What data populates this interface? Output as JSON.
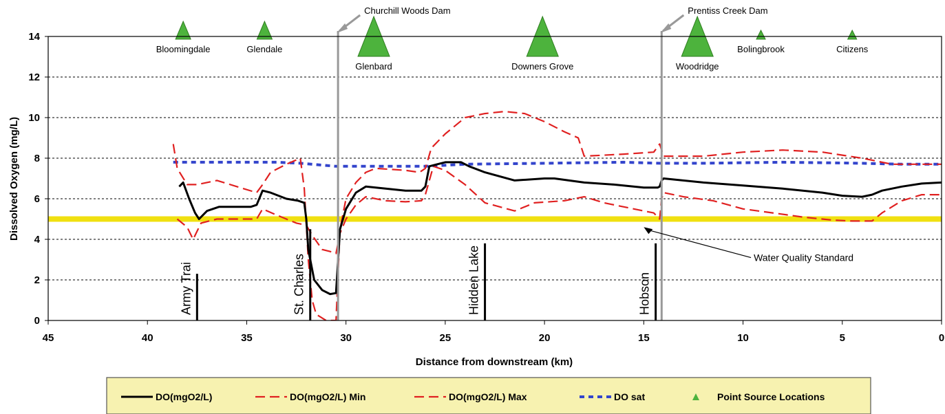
{
  "chart_data": {
    "type": "line",
    "xlabel": "Distance from downstream (km)",
    "ylabel": "Dissolved Oxygen (mg/L)",
    "xlim": [
      45,
      0
    ],
    "ylim": [
      0,
      14
    ],
    "x_ticks": [
      45,
      40,
      35,
      30,
      25,
      20,
      15,
      10,
      5,
      0
    ],
    "y_ticks": [
      0,
      2,
      4,
      6,
      8,
      10,
      12,
      14
    ],
    "grid": "horizontal-dashed",
    "series": [
      {
        "name": "DO(mgO2/L)",
        "color": "#000000",
        "style": "solid",
        "points": [
          [
            38.4,
            6.6
          ],
          [
            38.2,
            6.8
          ],
          [
            37.9,
            6.0
          ],
          [
            37.6,
            5.3
          ],
          [
            37.4,
            5.0
          ],
          [
            37.0,
            5.4
          ],
          [
            36.4,
            5.6
          ],
          [
            35.5,
            5.6
          ],
          [
            34.8,
            5.6
          ],
          [
            34.5,
            5.7
          ],
          [
            34.2,
            6.4
          ],
          [
            33.8,
            6.3
          ],
          [
            33.0,
            6.0
          ],
          [
            32.4,
            5.9
          ],
          [
            32.1,
            5.8
          ],
          [
            32.0,
            5.0
          ],
          [
            31.9,
            3.5
          ],
          [
            31.6,
            2.0
          ],
          [
            31.2,
            1.5
          ],
          [
            30.8,
            1.3
          ],
          [
            30.5,
            1.35
          ],
          [
            30.3,
            4.5
          ],
          [
            30.0,
            5.5
          ],
          [
            29.5,
            6.3
          ],
          [
            29.0,
            6.6
          ],
          [
            28.0,
            6.5
          ],
          [
            27.0,
            6.4
          ],
          [
            26.2,
            6.4
          ],
          [
            26.0,
            6.6
          ],
          [
            25.8,
            7.6
          ],
          [
            25.0,
            7.8
          ],
          [
            24.2,
            7.8
          ],
          [
            23.8,
            7.6
          ],
          [
            23.0,
            7.3
          ],
          [
            21.5,
            6.9
          ],
          [
            20.0,
            7.0
          ],
          [
            19.5,
            7.0
          ],
          [
            18.0,
            6.8
          ],
          [
            16.5,
            6.7
          ],
          [
            15.0,
            6.55
          ],
          [
            14.3,
            6.55
          ],
          [
            14.2,
            6.6
          ],
          [
            14.1,
            6.9
          ],
          [
            14.0,
            7.0
          ],
          [
            12.0,
            6.8
          ],
          [
            10.0,
            6.65
          ],
          [
            8.0,
            6.5
          ],
          [
            6.0,
            6.3
          ],
          [
            5.0,
            6.15
          ],
          [
            4.0,
            6.1
          ],
          [
            3.5,
            6.2
          ],
          [
            3.0,
            6.4
          ],
          [
            2.0,
            6.6
          ],
          [
            1.0,
            6.75
          ],
          [
            0.0,
            6.8
          ]
        ]
      },
      {
        "name": "DO(mgO2/L) Min",
        "color": "#e02020",
        "style": "dashed",
        "points": [
          [
            38.5,
            5.0
          ],
          [
            38.0,
            4.6
          ],
          [
            37.7,
            4.0
          ],
          [
            37.3,
            4.8
          ],
          [
            36.5,
            5.0
          ],
          [
            35.5,
            5.0
          ],
          [
            34.5,
            5.0
          ],
          [
            34.2,
            5.5
          ],
          [
            33.5,
            5.2
          ],
          [
            33.0,
            5.0
          ],
          [
            32.5,
            4.8
          ],
          [
            32.0,
            4.7
          ],
          [
            31.7,
            4.2
          ],
          [
            31.2,
            3.5
          ],
          [
            30.8,
            3.4
          ],
          [
            30.5,
            3.3
          ],
          [
            30.3,
            4.3
          ],
          [
            30.0,
            5.0
          ],
          [
            29.5,
            5.7
          ],
          [
            29.0,
            6.1
          ],
          [
            28.0,
            5.9
          ],
          [
            27.0,
            5.85
          ],
          [
            26.2,
            5.9
          ],
          [
            26.0,
            6.2
          ],
          [
            25.6,
            7.6
          ],
          [
            25.0,
            7.4
          ],
          [
            24.0,
            6.7
          ],
          [
            23.0,
            5.8
          ],
          [
            21.5,
            5.4
          ],
          [
            20.5,
            5.8
          ],
          [
            19.0,
            5.9
          ],
          [
            18.0,
            6.1
          ],
          [
            17.0,
            5.8
          ],
          [
            15.5,
            5.5
          ],
          [
            14.5,
            5.3
          ],
          [
            14.2,
            5.0
          ],
          [
            14.1,
            6.0
          ],
          [
            14.0,
            6.3
          ],
          [
            13.0,
            6.1
          ],
          [
            11.5,
            5.9
          ],
          [
            10.0,
            5.5
          ],
          [
            8.5,
            5.3
          ],
          [
            7.0,
            5.1
          ],
          [
            5.5,
            4.95
          ],
          [
            4.5,
            4.9
          ],
          [
            3.5,
            4.9
          ],
          [
            3.0,
            5.3
          ],
          [
            2.0,
            5.9
          ],
          [
            1.0,
            6.2
          ],
          [
            0.0,
            6.2
          ]
        ]
      },
      {
        "name": "DO(mgO2/L) Max",
        "color": "#e02020",
        "style": "dashed",
        "points": [
          [
            38.7,
            8.7
          ],
          [
            38.5,
            7.5
          ],
          [
            38.0,
            6.7
          ],
          [
            37.5,
            6.7
          ],
          [
            36.5,
            6.9
          ],
          [
            35.5,
            6.6
          ],
          [
            34.5,
            6.3
          ],
          [
            34.2,
            6.7
          ],
          [
            33.8,
            7.3
          ],
          [
            33.0,
            7.7
          ],
          [
            32.3,
            8.0
          ],
          [
            32.1,
            6.5
          ],
          [
            31.9,
            3.0
          ],
          [
            31.7,
            1.0
          ],
          [
            31.5,
            0.3
          ],
          [
            31.0,
            0.0
          ],
          [
            30.5,
            0.0
          ],
          [
            30.3,
            4.5
          ],
          [
            30.0,
            6.0
          ],
          [
            29.5,
            6.8
          ],
          [
            29.0,
            7.3
          ],
          [
            28.5,
            7.5
          ],
          [
            27.0,
            7.4
          ],
          [
            26.3,
            7.3
          ],
          [
            26.0,
            7.5
          ],
          [
            25.7,
            8.5
          ],
          [
            25.0,
            9.2
          ],
          [
            24.0,
            10.0
          ],
          [
            23.0,
            10.2
          ],
          [
            22.0,
            10.3
          ],
          [
            21.0,
            10.2
          ],
          [
            20.0,
            9.8
          ],
          [
            19.0,
            9.3
          ],
          [
            18.3,
            9.0
          ],
          [
            18.0,
            8.1
          ],
          [
            16.0,
            8.2
          ],
          [
            14.5,
            8.3
          ],
          [
            14.2,
            8.7
          ],
          [
            14.0,
            8.1
          ],
          [
            12.0,
            8.1
          ],
          [
            10.0,
            8.3
          ],
          [
            8.0,
            8.4
          ],
          [
            6.0,
            8.3
          ],
          [
            4.0,
            8.0
          ],
          [
            2.5,
            7.7
          ],
          [
            1.0,
            7.7
          ],
          [
            0.0,
            7.7
          ]
        ]
      },
      {
        "name": "DO sat",
        "color": "#3344cc",
        "style": "dotted",
        "points": [
          [
            38.7,
            7.8
          ],
          [
            35.0,
            7.8
          ],
          [
            33.5,
            7.8
          ],
          [
            32.3,
            7.75
          ],
          [
            30.5,
            7.6
          ],
          [
            28.0,
            7.6
          ],
          [
            26.0,
            7.6
          ],
          [
            24.0,
            7.7
          ],
          [
            20.0,
            7.75
          ],
          [
            16.0,
            7.8
          ],
          [
            14.2,
            7.75
          ],
          [
            12.0,
            7.75
          ],
          [
            8.0,
            7.8
          ],
          [
            4.0,
            7.75
          ],
          [
            2.0,
            7.7
          ],
          [
            0.0,
            7.7
          ]
        ]
      }
    ],
    "standard": {
      "name": "Water Quality Standard",
      "value": 5.0,
      "color": "#f0e010"
    },
    "point_sources": {
      "name": "Point Source Locations",
      "color": "#4db33d",
      "items": [
        {
          "label": "Bloomingdale",
          "x": 38.2,
          "size": "small"
        },
        {
          "label": "Glendale",
          "x": 34.1,
          "size": "small"
        },
        {
          "label": "Glenbard",
          "x": 28.6,
          "size": "large"
        },
        {
          "label": "Downers Grove",
          "x": 20.1,
          "size": "large"
        },
        {
          "label": "Woodridge",
          "x": 12.3,
          "size": "large"
        },
        {
          "label": "Bolingbrook",
          "x": 9.1,
          "size": "tiny"
        },
        {
          "label": "Citizens",
          "x": 4.5,
          "size": "tiny"
        }
      ]
    },
    "dams": [
      {
        "label": "Churchill Woods Dam",
        "x": 30.4
      },
      {
        "label": "Prentiss Creek Dam",
        "x": 14.1
      }
    ],
    "tributaries": [
      {
        "label": "Army Trai",
        "x": 37.5,
        "top": 2.3
      },
      {
        "label": "St. Charles",
        "x": 31.8,
        "top": 4.5
      },
      {
        "label": "Hidden Lake",
        "x": 23.0,
        "top": 3.8
      },
      {
        "label": "Hobson",
        "x": 14.4,
        "top": 3.8
      }
    ]
  },
  "legend": {
    "items": [
      {
        "label": "DO(mgO2/L)",
        "key": "do"
      },
      {
        "label": "DO(mgO2/L) Min",
        "key": "min"
      },
      {
        "label": "DO(mgO2/L) Max",
        "key": "max"
      },
      {
        "label": "DO sat",
        "key": "sat"
      },
      {
        "label": "Point Source Locations",
        "key": "ps"
      }
    ],
    "background": "#f7f2b0"
  }
}
